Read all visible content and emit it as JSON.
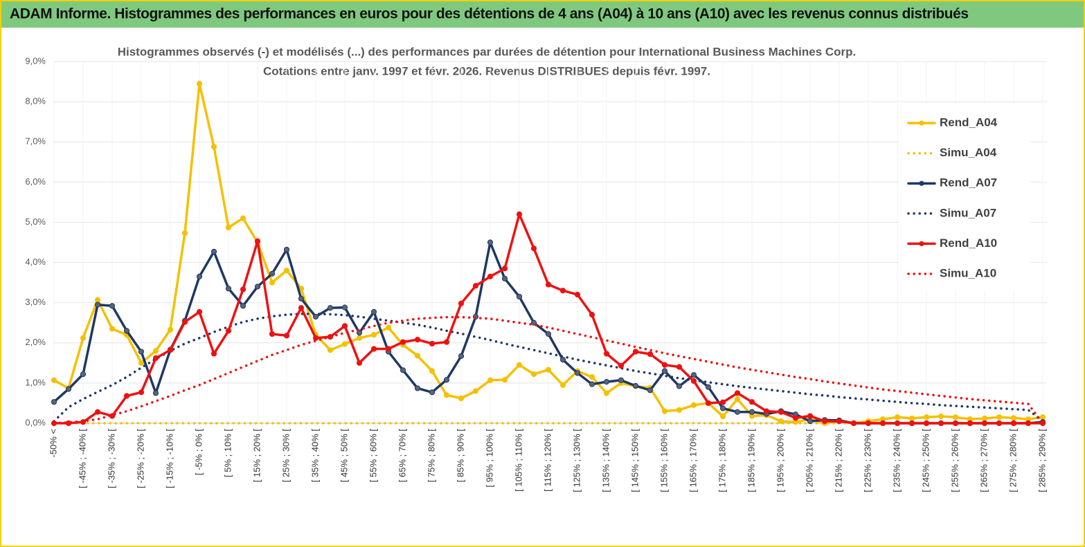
{
  "header": {
    "title": "ADAM Informe. Histogrammes des performances en euros pour des détentions de 4 ans (A04) à 10 ans (A10) avec les revenus connus distribués"
  },
  "chart_data": {
    "type": "line",
    "title": "Histogrammes observés (-)  et modélisés (...) des performances par durées de détention pour International Business Machines Corp.",
    "subtitle": "Cotations entre janv. 1997 et févr. 2026. Revenus DISTRIBUES depuis févr. 1997.",
    "categories": [
      "-50% <",
      null,
      "[ -45% ; -40% [",
      null,
      "[ -35% ; -30% [",
      null,
      "[ -25% ; -20% [",
      null,
      "[ -15% ; -10% [",
      null,
      "[ -5% ; 0% [",
      null,
      "[ 5% ; 10% [",
      null,
      "[ 15% ; 20% [",
      null,
      "[ 25% ; 30% [",
      null,
      "[ 35% ; 40% [",
      null,
      "[ 45% ; 50% [",
      null,
      "[ 55% ; 60% [",
      null,
      "[ 65% ; 70% [",
      null,
      "[ 75% ; 80% [",
      null,
      "[ 85% ; 90% [",
      null,
      "[ 95% ; 100% [",
      null,
      "[ 105% ; 110% [",
      null,
      "[ 115% ; 120% [",
      null,
      "[ 125% ; 130% [",
      null,
      "[ 135% ; 140% [",
      null,
      "[ 145% ; 150% [",
      null,
      "[ 155% ; 160% [",
      null,
      "[ 165% ; 170% [",
      null,
      "[ 175% ; 180% [",
      null,
      "[ 185% ; 190% [",
      null,
      "[ 195% ; 200% [",
      null,
      "[ 205% ; 210% [",
      null,
      "[ 215% ; 220% [",
      null,
      "[ 225% ; 230% [",
      null,
      "[ 235% ; 240% [",
      null,
      "[ 245% ; 250% [",
      null,
      "[ 255% ; 260% [",
      null,
      "[ 265% ; 270% [",
      null,
      "[ 275% ; 280% [",
      null,
      "[ 285% ; 290% ["
    ],
    "series": [
      {
        "name": "Rend_A04",
        "color": "#f5c000",
        "style": "solid",
        "values": [
          1.07,
          0.87,
          2.12,
          3.07,
          2.35,
          2.2,
          1.5,
          1.8,
          2.33,
          4.73,
          8.45,
          6.88,
          4.87,
          5.1,
          4.5,
          3.5,
          3.8,
          3.35,
          2.2,
          1.82,
          1.97,
          2.12,
          2.2,
          2.38,
          1.95,
          1.68,
          1.3,
          0.7,
          0.62,
          0.8,
          1.07,
          1.08,
          1.45,
          1.22,
          1.33,
          0.95,
          1.3,
          1.15,
          0.75,
          1.0,
          0.92,
          0.88,
          0.3,
          0.33,
          0.45,
          0.5,
          0.17,
          0.6,
          0.18,
          0.2,
          0.05,
          0.03,
          0.1,
          0.0,
          0.05,
          0.0,
          0.05,
          0.1,
          0.15,
          0.12,
          0.15,
          0.17,
          0.15,
          0.1,
          0.12,
          0.15,
          0.13,
          0.1,
          0.15
        ]
      },
      {
        "name": "Simu_A04",
        "color": "#f5c000",
        "style": "dotted",
        "values": [
          0,
          0,
          0,
          0,
          0,
          0,
          0,
          0,
          0,
          0,
          0,
          0,
          0,
          0,
          0,
          0,
          0,
          0,
          0,
          0,
          0,
          0,
          0,
          0,
          0,
          0,
          0,
          0,
          0,
          0,
          0,
          0,
          0,
          0,
          0,
          0,
          0,
          0,
          0,
          0,
          0,
          0,
          0,
          0,
          0,
          0,
          0,
          0,
          0,
          0,
          0,
          0,
          0,
          0,
          0,
          0,
          0,
          0,
          0,
          0,
          0,
          0,
          0,
          0,
          0,
          0,
          0,
          0,
          0
        ]
      },
      {
        "name": "Rend_A07",
        "color": "#1f3864",
        "style": "solid",
        "values": [
          0.53,
          0.85,
          1.22,
          2.95,
          2.92,
          2.3,
          1.78,
          0.75,
          1.83,
          2.55,
          3.65,
          4.27,
          3.35,
          2.92,
          3.4,
          3.72,
          4.32,
          3.1,
          2.65,
          2.87,
          2.88,
          2.25,
          2.77,
          1.78,
          1.32,
          0.87,
          0.77,
          1.08,
          1.67,
          2.65,
          4.5,
          3.6,
          3.15,
          2.5,
          2.22,
          1.58,
          1.25,
          0.97,
          1.03,
          1.07,
          0.93,
          0.82,
          1.3,
          0.92,
          1.2,
          0.9,
          0.37,
          0.28,
          0.28,
          0.23,
          0.3,
          0.22,
          0.05,
          0.08,
          0.07,
          0,
          0,
          0,
          0,
          0,
          0,
          0,
          0,
          0,
          0,
          0,
          0,
          0,
          0.03
        ]
      },
      {
        "name": "Simu_A07",
        "color": "#1f3864",
        "style": "dotted",
        "values": [
          0.05,
          0.4,
          0.6,
          0.78,
          0.95,
          1.15,
          1.38,
          1.6,
          1.8,
          1.98,
          2.12,
          2.27,
          2.4,
          2.52,
          2.6,
          2.66,
          2.7,
          2.72,
          2.72,
          2.71,
          2.69,
          2.65,
          2.6,
          2.55,
          2.5,
          2.45,
          2.38,
          2.3,
          2.23,
          2.15,
          2.07,
          1.98,
          1.9,
          1.82,
          1.74,
          1.66,
          1.58,
          1.51,
          1.44,
          1.37,
          1.3,
          1.24,
          1.18,
          1.12,
          1.07,
          1.02,
          0.97,
          0.92,
          0.88,
          0.84,
          0.8,
          0.76,
          0.72,
          0.69,
          0.65,
          0.62,
          0.59,
          0.56,
          0.53,
          0.5,
          0.48,
          0.45,
          0.43,
          0.41,
          0.39,
          0.37,
          0.35,
          0.33,
          0.05
        ]
      },
      {
        "name": "Rend_A10",
        "color": "#ee1111",
        "style": "solid",
        "values": [
          0,
          0,
          0.03,
          0.28,
          0.18,
          0.68,
          0.77,
          1.62,
          1.82,
          2.52,
          2.77,
          1.73,
          2.3,
          3.33,
          4.53,
          2.22,
          2.18,
          2.87,
          2.12,
          2.15,
          2.42,
          1.5,
          1.85,
          1.85,
          2.02,
          2.08,
          1.98,
          2.02,
          2.98,
          3.42,
          3.65,
          3.85,
          5.2,
          4.35,
          3.45,
          3.3,
          3.2,
          2.7,
          1.73,
          1.43,
          1.78,
          1.72,
          1.45,
          1.4,
          1.05,
          0.5,
          0.52,
          0.75,
          0.53,
          0.3,
          0.28,
          0.13,
          0.18,
          0.05,
          0.05,
          0,
          0,
          0,
          0,
          0,
          0,
          0,
          0,
          0,
          0,
          0,
          0,
          0,
          0
        ]
      },
      {
        "name": "Simu_A10",
        "color": "#ee1111",
        "style": "dotted",
        "values": [
          0,
          0.02,
          0.05,
          0.1,
          0.2,
          0.3,
          0.42,
          0.55,
          0.68,
          0.82,
          0.95,
          1.1,
          1.25,
          1.4,
          1.55,
          1.7,
          1.82,
          1.95,
          2.05,
          2.15,
          2.25,
          2.33,
          2.42,
          2.5,
          2.55,
          2.6,
          2.62,
          2.64,
          2.64,
          2.62,
          2.6,
          2.55,
          2.5,
          2.45,
          2.38,
          2.3,
          2.22,
          2.14,
          2.06,
          1.98,
          1.9,
          1.82,
          1.74,
          1.67,
          1.6,
          1.53,
          1.46,
          1.39,
          1.33,
          1.27,
          1.21,
          1.15,
          1.1,
          1.04,
          0.99,
          0.94,
          0.89,
          0.84,
          0.8,
          0.76,
          0.72,
          0.68,
          0.64,
          0.6,
          0.57,
          0.54,
          0.51,
          0.48,
          0
        ]
      }
    ],
    "ylim": [
      0,
      9
    ],
    "yticks": [
      {
        "value": 0,
        "label": "0,0%"
      },
      {
        "value": 1,
        "label": "1,0%"
      },
      {
        "value": 2,
        "label": "2,0%"
      },
      {
        "value": 3,
        "label": "3,0%"
      },
      {
        "value": 4,
        "label": "4,0%"
      },
      {
        "value": 5,
        "label": "5,0%"
      },
      {
        "value": 6,
        "label": "6,0%"
      },
      {
        "value": 7,
        "label": "7,0%"
      },
      {
        "value": 8,
        "label": "8,0%"
      },
      {
        "value": 9,
        "label": "9,0%"
      }
    ],
    "grid": true,
    "legend": "right"
  }
}
